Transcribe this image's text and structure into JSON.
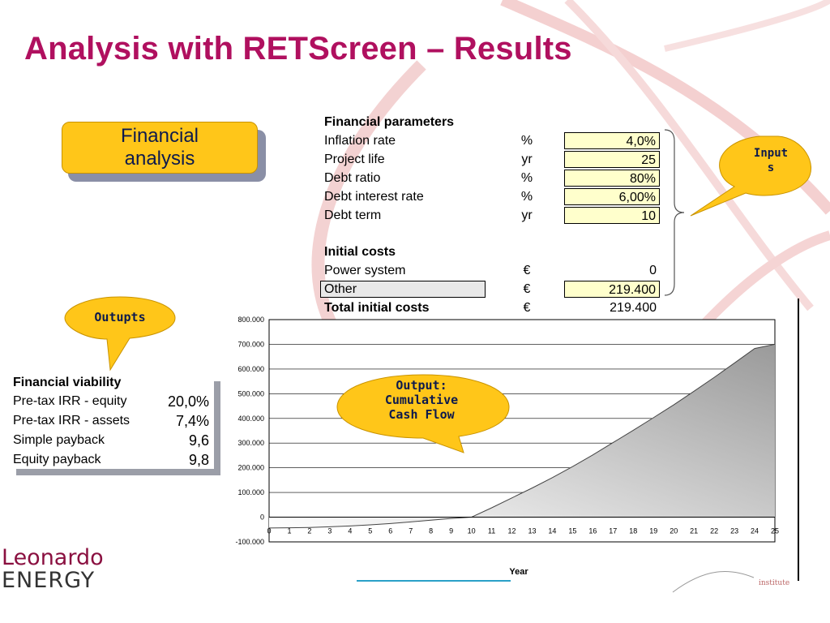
{
  "slide": {
    "title": "Analysis with RETScreen – Results",
    "accent_color": "#b0105f"
  },
  "financial_analysis_button": {
    "label": "Financial\nanalysis",
    "color": "#ffc619"
  },
  "parameters": {
    "heading": "Financial parameters",
    "rows": [
      {
        "label": "Inflation rate",
        "unit": "%",
        "value": "4,0%"
      },
      {
        "label": "Project life",
        "unit": "yr",
        "value": "25"
      },
      {
        "label": "Debt ratio",
        "unit": "%",
        "value": "80%"
      },
      {
        "label": "Debt interest rate",
        "unit": "%",
        "value": "6,00%"
      },
      {
        "label": "Debt term",
        "unit": "yr",
        "value": "10"
      }
    ],
    "initial_costs_heading": "Initial costs",
    "costs": [
      {
        "label": "Power system",
        "unit": "€",
        "value": "0"
      },
      {
        "label": "Other",
        "unit": "€",
        "value": "219.400"
      }
    ],
    "total": {
      "label": "Total initial costs",
      "unit": "€",
      "value": "219.400"
    }
  },
  "bubbles": {
    "inputs": "Input\ns",
    "outputs": "Outupts",
    "cumulative": "Output:\nCumulative\nCash Flow"
  },
  "viability": {
    "heading": "Financial viability",
    "rows": [
      {
        "label": "Pre-tax IRR - equity",
        "value": "20,0%"
      },
      {
        "label": "Pre-tax IRR - assets",
        "value": "7,4%"
      },
      {
        "label": "Simple payback",
        "value": "9,6"
      },
      {
        "label": "Equity payback",
        "value": "9,8"
      }
    ]
  },
  "chart_data": {
    "type": "area",
    "xlabel": "Year",
    "ylabel": "",
    "x": [
      0,
      1,
      2,
      3,
      4,
      5,
      6,
      7,
      8,
      9,
      10,
      11,
      12,
      13,
      14,
      15,
      16,
      17,
      18,
      19,
      20,
      21,
      22,
      23,
      24,
      25
    ],
    "y": [
      -43800,
      -43000,
      -41500,
      -39000,
      -35500,
      -31000,
      -25500,
      -19000,
      -12000,
      -5000,
      0,
      38000,
      78000,
      118000,
      160000,
      205000,
      252000,
      302000,
      352000,
      403000,
      455000,
      510000,
      566000,
      624000,
      683000,
      700000
    ],
    "y_ticks": [
      "800.000",
      "700.000",
      "600.000",
      "500.000",
      "400.000",
      "300.000",
      "200.000",
      "100.000",
      "0",
      "-100.000"
    ],
    "ylim": [
      -100000,
      800000
    ],
    "xlim": [
      0,
      25
    ],
    "grid": true,
    "legend": "none",
    "fill_color": "#9a9a9a"
  },
  "logo": {
    "line1": "Leonardo",
    "line2": "ENERGY",
    "institute": "institute"
  }
}
